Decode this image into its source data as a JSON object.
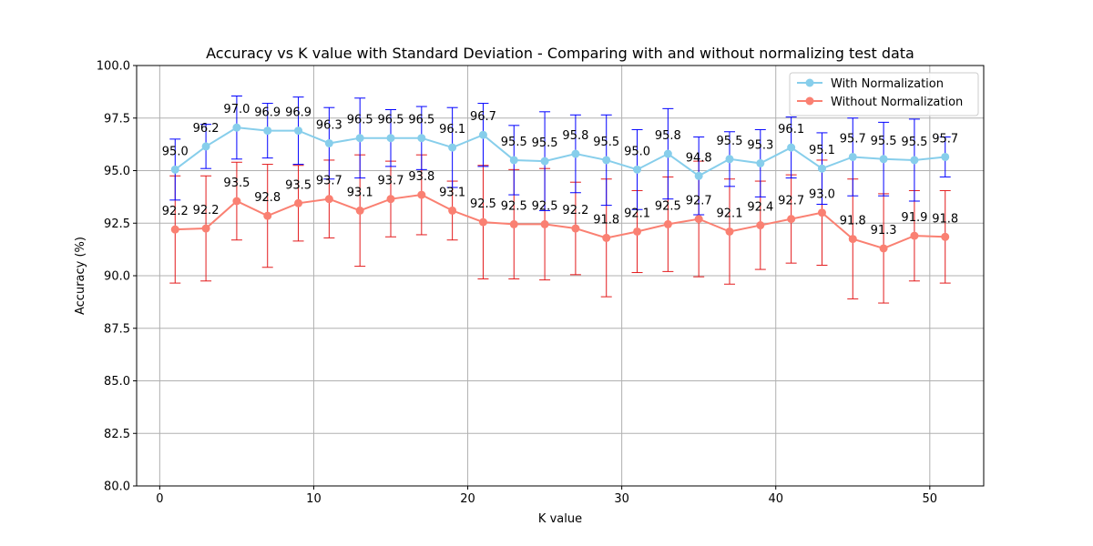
{
  "chart_data": {
    "type": "line",
    "title": "Accuracy vs K value with Standard Deviation - Comparing with and without normalizing test data",
    "xlabel": "K value",
    "ylabel": "Accuracy (%)",
    "xlim": [
      -1.5,
      53.5
    ],
    "ylim": [
      80.0,
      100.0
    ],
    "x_ticks": [
      0,
      10,
      20,
      30,
      40,
      50
    ],
    "x_tick_labels": [
      "0",
      "10",
      "20",
      "30",
      "40",
      "50"
    ],
    "y_ticks": [
      80.0,
      82.5,
      85.0,
      87.5,
      90.0,
      92.5,
      95.0,
      97.5,
      100.0
    ],
    "y_tick_labels": [
      "80.0",
      "82.5",
      "85.0",
      "87.5",
      "90.0",
      "92.5",
      "95.0",
      "97.5",
      "100.0"
    ],
    "grid": true,
    "legend_position": "top-right",
    "x": [
      1,
      3,
      5,
      7,
      9,
      11,
      13,
      15,
      17,
      19,
      21,
      23,
      25,
      27,
      29,
      31,
      33,
      35,
      37,
      39,
      41,
      43,
      45,
      47,
      49,
      51
    ],
    "series": [
      {
        "name": "With Normalization",
        "color": "#87ceeb",
        "error_color": "#0000ff",
        "values": [
          95.05,
          96.15,
          97.05,
          96.9,
          96.9,
          96.3,
          96.55,
          96.55,
          96.55,
          96.1,
          96.7,
          95.5,
          95.45,
          95.8,
          95.5,
          95.05,
          95.8,
          94.75,
          95.55,
          95.35,
          96.1,
          95.1,
          95.65,
          95.55,
          95.5,
          95.65
        ],
        "errors": [
          1.45,
          1.05,
          1.5,
          1.3,
          1.6,
          1.7,
          1.9,
          1.35,
          1.5,
          1.9,
          1.5,
          1.65,
          2.35,
          1.85,
          2.15,
          1.9,
          2.15,
          1.85,
          1.3,
          1.6,
          1.45,
          1.7,
          1.85,
          1.75,
          1.95,
          0.95
        ],
        "labels": [
          "95.0",
          "96.2",
          "97.0",
          "96.9",
          "96.9",
          "96.3",
          "96.5",
          "96.5",
          "96.5",
          "96.1",
          "96.7",
          "95.5",
          "95.5",
          "95.8",
          "95.5",
          "95.0",
          "95.8",
          "94.8",
          "95.5",
          "95.3",
          "96.1",
          "95.1",
          "95.7",
          "95.5",
          "95.5",
          "95.7"
        ]
      },
      {
        "name": "Without Normalization",
        "color": "#fa8072",
        "error_color": "#e31a1c",
        "values": [
          92.2,
          92.25,
          93.55,
          92.85,
          93.45,
          93.65,
          93.1,
          93.65,
          93.85,
          93.1,
          92.55,
          92.45,
          92.45,
          92.25,
          91.8,
          92.1,
          92.45,
          92.7,
          92.1,
          92.4,
          92.7,
          93.0,
          91.75,
          91.3,
          91.9,
          91.85
        ],
        "errors": [
          2.55,
          2.5,
          1.85,
          2.45,
          1.8,
          1.85,
          2.65,
          1.8,
          1.9,
          1.4,
          2.7,
          2.6,
          2.65,
          2.2,
          2.8,
          1.95,
          2.25,
          2.75,
          2.5,
          2.1,
          2.1,
          2.5,
          2.85,
          2.6,
          2.15,
          2.2
        ],
        "labels": [
          "92.2",
          "92.2",
          "93.5",
          "92.8",
          "93.5",
          "93.7",
          "93.1",
          "93.7",
          "93.8",
          "93.1",
          "92.5",
          "92.5",
          "92.5",
          "92.2",
          "91.8",
          "92.1",
          "92.5",
          "92.7",
          "92.1",
          "92.4",
          "92.7",
          "93.0",
          "91.8",
          "91.3",
          "91.9",
          "91.8"
        ]
      }
    ]
  }
}
